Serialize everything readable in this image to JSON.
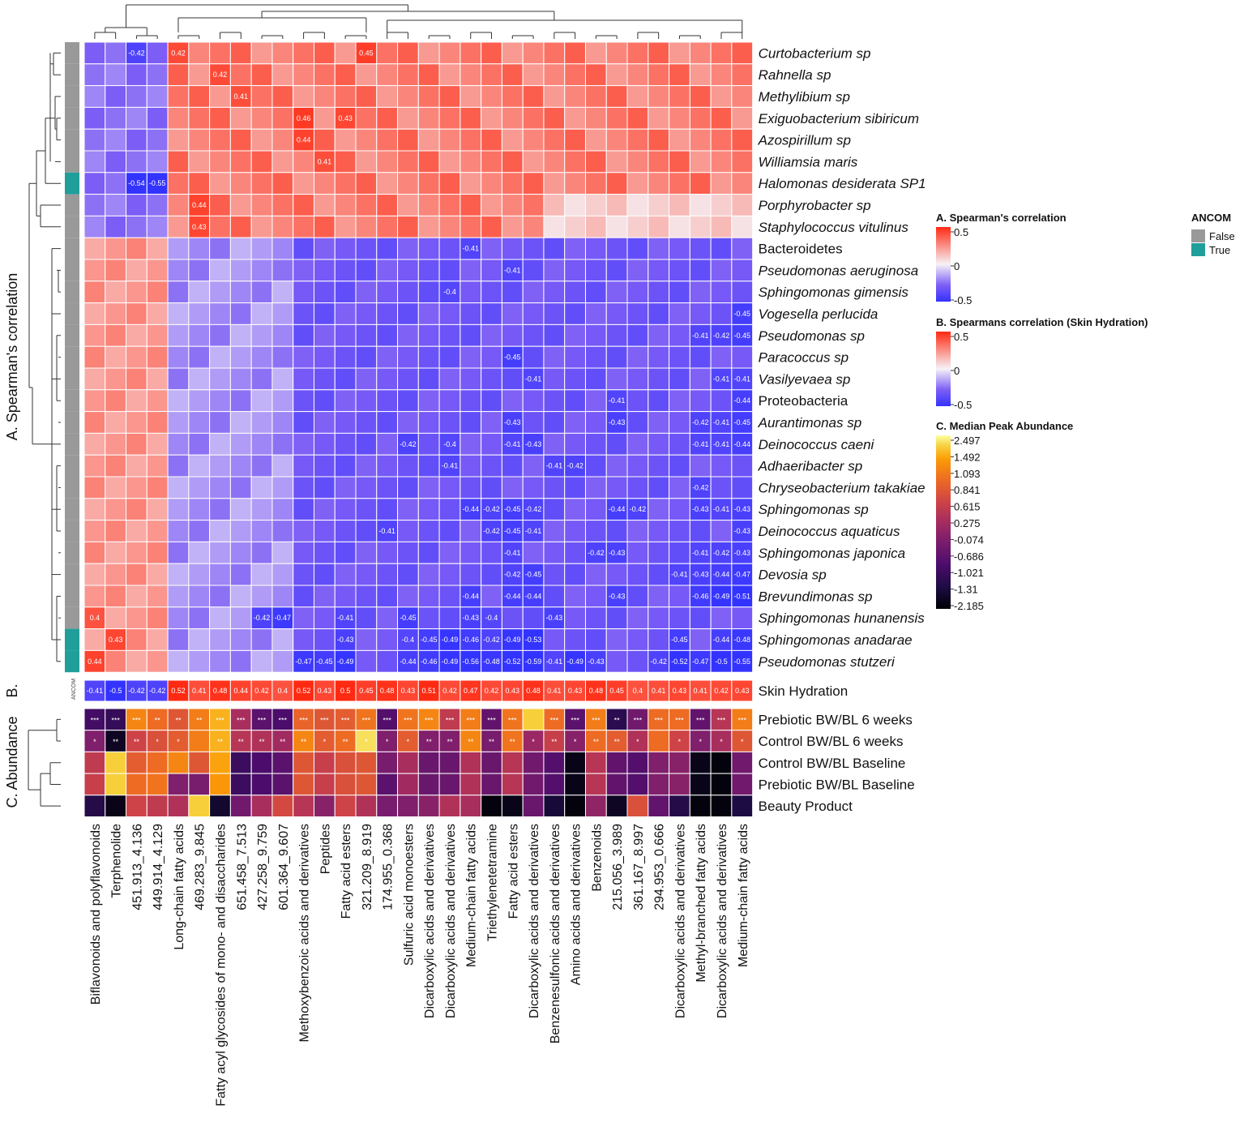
{
  "chart_data": {
    "type": "heatmap",
    "columns": [
      "Biflavonoids and polyflavonoids",
      "Terphenolide",
      "451.913_4.136",
      "449.914_4.129",
      "Long-chain fatty acids",
      "469.283_9.845",
      "Fatty acyl glycosides of mono- and disaccharides",
      "651.458_7.513",
      "427.258_9.759",
      "601.364_9.607",
      "Methoxybenzoic acids and derivatives",
      "Peptides",
      "Fatty acid esters",
      "321.209_8.919",
      "174.955_0.368",
      "Sulfuric acid monoesters",
      "Dicarboxylic acids and derivatives",
      "Dicarboxylic acids and derivatives",
      "Medium-chain fatty acids",
      "Triethylenetetramine",
      "Fatty acid esters",
      "Dicarboxylic acids and derivatives",
      "Benzenesulfonic acids and derivatives",
      "Amino acids and derivatives",
      "Benzenoids",
      "215.056_3.989",
      "361.167_8.997",
      "294.953_0.666",
      "Dicarboxylic acids and derivatives",
      "Methyl-branched fatty acids",
      "Dicarboxylic acids and derivatives",
      "Medium-chain fatty acids"
    ],
    "panel_a": {
      "side_label": "A. Spearman's correlation",
      "ancom_label": "ANCOM",
      "rows": [
        {
          "name": "Curtobacterium sp",
          "italic": true,
          "ancom": "False",
          "labels": {
            "2": "-0.42",
            "4": "0.42",
            "13": "0.45"
          }
        },
        {
          "name": "Rahnella sp",
          "italic": true,
          "ancom": "False",
          "labels": {
            "6": "0.42"
          }
        },
        {
          "name": "Methylibium sp",
          "italic": true,
          "ancom": "False",
          "labels": {
            "7": "0.41"
          }
        },
        {
          "name": "Exiguobacterium sibiricum",
          "italic": true,
          "ancom": "False",
          "labels": {
            "10": "0.46",
            "12": "0.43"
          }
        },
        {
          "name": "Azospirillum sp",
          "italic": true,
          "ancom": "False",
          "labels": {
            "10": "0.44"
          }
        },
        {
          "name": "Williamsia maris",
          "italic": true,
          "ancom": "False",
          "labels": {
            "11": "0.41"
          }
        },
        {
          "name": "Halomonas desiderata SP1",
          "italic": true,
          "ancom": "True",
          "labels": {
            "2": "-0.54",
            "3": "-0.55"
          }
        },
        {
          "name": "Porphyrobacter sp",
          "italic": true,
          "ancom": "False",
          "labels": {
            "5": "0.44"
          }
        },
        {
          "name": "Staphylococcus vitulinus",
          "italic": true,
          "ancom": "False",
          "labels": {
            "5": "0.43"
          }
        },
        {
          "name": "Bacteroidetes",
          "italic": false,
          "ancom": "False",
          "labels": {
            "18": "-0.41"
          }
        },
        {
          "name": "Pseudomonas aeruginosa",
          "italic": true,
          "ancom": "False",
          "labels": {
            "20": "-0.41"
          }
        },
        {
          "name": "Sphingomonas gimensis",
          "italic": true,
          "ancom": "False",
          "labels": {
            "17": "-0.4"
          }
        },
        {
          "name": "Vogesella perlucida",
          "italic": true,
          "ancom": "False",
          "labels": {
            "31": "-0.45"
          }
        },
        {
          "name": "Pseudomonas sp",
          "italic": true,
          "ancom": "False",
          "labels": {
            "29": "-0.41",
            "30": "-0.42",
            "31": "-0.45"
          }
        },
        {
          "name": "Paracoccus sp",
          "italic": true,
          "ancom": "False",
          "labels": {
            "20": "-0.45"
          }
        },
        {
          "name": "Vasilyevaea sp",
          "italic": true,
          "ancom": "False",
          "labels": {
            "21": "-0.41",
            "30": "-0.41",
            "31": "-0.41"
          }
        },
        {
          "name": "Proteobacteria",
          "italic": false,
          "ancom": "False",
          "labels": {
            "25": "-0.41",
            "31": "-0.44"
          }
        },
        {
          "name": "Aurantimonas sp",
          "italic": true,
          "ancom": "False",
          "labels": {
            "20": "-0.43",
            "25": "-0.43",
            "29": "-0.42",
            "30": "-0.41",
            "31": "-0.45"
          }
        },
        {
          "name": "Deinococcus caeni",
          "italic": true,
          "ancom": "False",
          "labels": {
            "15": "-0.42",
            "17": "-0.4",
            "20": "-0.41",
            "21": "-0.43",
            "29": "-0.41",
            "30": "-0.41",
            "31": "-0.44"
          }
        },
        {
          "name": "Adhaeribacter sp",
          "italic": true,
          "ancom": "False",
          "labels": {
            "17": "-0.41",
            "22": "-0.41",
            "23": "-0.42"
          }
        },
        {
          "name": "Chryseobacterium takakiae",
          "italic": true,
          "ancom": "False",
          "labels": {
            "29": "-0.42"
          }
        },
        {
          "name": "Sphingomonas sp",
          "italic": true,
          "ancom": "False",
          "labels": {
            "18": "-0.44",
            "19": "-0.42",
            "20": "-0.45",
            "21": "-0.42",
            "25": "-0.44",
            "26": "-0.42",
            "29": "-0.43",
            "30": "-0.41",
            "31": "-0.43"
          }
        },
        {
          "name": "Deinococcus aquaticus",
          "italic": true,
          "ancom": "False",
          "labels": {
            "14": "-0.41",
            "19": "-0.42",
            "20": "-0.45",
            "21": "-0.41",
            "31": "-0.43"
          }
        },
        {
          "name": "Sphingomonas japonica",
          "italic": true,
          "ancom": "False",
          "labels": {
            "20": "-0.41",
            "24": "-0.42",
            "25": "-0.43",
            "29": "-0.41",
            "30": "-0.42",
            "31": "-0.43"
          }
        },
        {
          "name": "Devosia sp",
          "italic": true,
          "ancom": "False",
          "labels": {
            "20": "-0.42",
            "21": "-0.45",
            "28": "-0.41",
            "29": "-0.43",
            "30": "-0.44",
            "31": "-0.47"
          }
        },
        {
          "name": "Brevundimonas sp",
          "italic": true,
          "ancom": "False",
          "labels": {
            "18": "-0.44",
            "20": "-0.44",
            "21": "-0.44",
            "25": "-0.43",
            "29": "-0.46",
            "30": "-0.49",
            "31": "-0.51"
          }
        },
        {
          "name": "Sphingomonas hunanensis",
          "italic": true,
          "ancom": "False",
          "labels": {
            "0": "0.4",
            "8": "-0.42",
            "9": "-0.47",
            "12": "-0.41",
            "15": "-0.45",
            "18": "-0.43",
            "19": "-0.4",
            "22": "-0.43"
          }
        },
        {
          "name": "Sphingomonas anadarae",
          "italic": true,
          "ancom": "True",
          "labels": {
            "1": "0.43",
            "12": "-0.43",
            "15": "-0.4",
            "16": "-0.45",
            "17": "-0.49",
            "18": "-0.46",
            "19": "-0.42",
            "20": "-0.49",
            "21": "-0.53",
            "28": "-0.45",
            "30": "-0.44",
            "31": "-0.48"
          }
        },
        {
          "name": "Pseudomonas stutzeri",
          "italic": true,
          "ancom": "True",
          "labels": {
            "0": "0.44",
            "10": "-0.47",
            "11": "-0.45",
            "12": "-0.49",
            "15": "-0.44",
            "16": "-0.46",
            "17": "-0.49",
            "18": "-0.56",
            "19": "-0.48",
            "20": "-0.52",
            "21": "-0.59",
            "22": "-0.41",
            "23": "-0.49",
            "24": "-0.43",
            "27": "-0.42",
            "28": "-0.52",
            "29": "-0.47",
            "30": "-0.5",
            "31": "-0.55"
          }
        }
      ]
    },
    "panel_b": {
      "side_label": "B.",
      "row_name": "Skin Hydration",
      "ancom_label": "ANCOM",
      "values": [
        "-0.41",
        "-0.5",
        "-0.42",
        "-0.42",
        "0.52",
        "0.41",
        "0.48",
        "0.44",
        "0.42",
        "0.4",
        "0.52",
        "0.43",
        "0.5",
        "0.45",
        "0.48",
        "0.43",
        "0.51",
        "0.42",
        "0.47",
        "0.42",
        "0.43",
        "0.48",
        "0.41",
        "0.43",
        "0.48",
        "0.45",
        "0.4",
        "0.41",
        "0.43",
        "0.41",
        "0.42",
        "0.43"
      ]
    },
    "panel_c": {
      "side_label": "C. Abundance",
      "rows": [
        {
          "name": "Prebiotic BW/BL 6 weeks",
          "values": [
            -1.1,
            -1.3,
            1.6,
            1.3,
            1.0,
            1.5,
            2.0,
            0.2,
            -0.8,
            -1.0,
            1.2,
            1.0,
            1.1,
            1.4,
            -0.9,
            1.4,
            1.6,
            0.5,
            1.5,
            -0.7,
            1.4,
            2.2,
            1.3,
            -0.8,
            1.5,
            -1.4,
            -0.5,
            1.3,
            1.3,
            -0.7,
            0.4,
            1.5
          ],
          "stars": [
            "***",
            "***",
            "***",
            "**",
            "**",
            "**",
            "***",
            "***",
            "***",
            "***",
            "***",
            "***",
            "***",
            "***",
            "***",
            "***",
            "***",
            "***",
            "***",
            "***",
            "***",
            "",
            "***",
            "***",
            "***",
            "**",
            "***",
            "***",
            "***",
            "***",
            "***",
            "***"
          ]
        },
        {
          "name": "Control BW/BL 6 weeks",
          "values": [
            -0.3,
            -1.9,
            0.7,
            0.9,
            1.1,
            1.5,
            2.0,
            0.4,
            0.3,
            0.1,
            1.6,
            1.1,
            1.3,
            2.3,
            -0.3,
            1.1,
            -0.3,
            -0.3,
            1.6,
            -0.4,
            1.4,
            0.0,
            0.6,
            -0.2,
            1.3,
            1.1,
            0.3,
            1.3,
            0.7,
            -0.3,
            0.2,
            1.0
          ],
          "stars": [
            "*",
            "**",
            "**",
            "*",
            "*",
            "",
            "**",
            "**",
            "**",
            "**",
            "**",
            "*",
            "**",
            "*",
            "*",
            "*",
            "**",
            "**",
            "**",
            "**",
            "**",
            "*",
            "**",
            "*",
            "**",
            "**",
            "*",
            "",
            "*",
            "*",
            "*",
            "*"
          ]
        },
        {
          "name": "Control BW/BL Baseline",
          "values": [
            0.5,
            2.2,
            1.1,
            1.3,
            1.6,
            1.0,
            1.9,
            -1.2,
            -1.0,
            -0.8,
            1.0,
            0.6,
            0.9,
            1.0,
            -0.4,
            0.2,
            -0.6,
            -0.6,
            0.3,
            -0.6,
            0.4,
            -0.5,
            -0.9,
            -2.0,
            0.4,
            -0.7,
            -0.9,
            -0.3,
            -0.2,
            -2.0,
            -2.1,
            -0.5
          ]
        },
        {
          "name": "Prebiotic BW/BL Baseline",
          "values": [
            0.6,
            2.2,
            1.3,
            1.4,
            -0.3,
            -0.4,
            1.8,
            -1.2,
            -1.0,
            -0.8,
            1.0,
            0.6,
            0.9,
            1.0,
            -0.8,
            0.1,
            -0.6,
            -0.6,
            0.3,
            -0.6,
            0.4,
            -0.5,
            -0.9,
            -2.0,
            0.4,
            -0.7,
            -0.9,
            -0.3,
            -0.2,
            -2.0,
            -2.1,
            -0.5
          ]
        },
        {
          "name": "Beauty Product",
          "values": [
            -1.5,
            -2.0,
            0.7,
            0.5,
            0.3,
            2.2,
            -1.8,
            -0.5,
            0.2,
            0.8,
            0.4,
            -0.2,
            0.7,
            0.3,
            -0.4,
            -0.3,
            -0.2,
            0.3,
            0.2,
            -2.1,
            -2.0,
            -0.6,
            -1.7,
            -2.1,
            -0.1,
            -1.9,
            0.9,
            -0.7,
            -1.5,
            -2.1,
            -2.1,
            -1.6
          ]
        }
      ]
    },
    "legends": {
      "a": {
        "title": "A. Spearman's correlation",
        "ticks": [
          "0.5",
          "0",
          "-0.5"
        ]
      },
      "b": {
        "title": "B. Spearmans correlation (Skin Hydration)",
        "ticks": [
          "0.5",
          "0",
          "-0.5"
        ]
      },
      "c": {
        "title": "C. Median Peak Abundance",
        "ticks": [
          "2.497",
          "1.492",
          "1.093",
          "0.841",
          "0.615",
          "0.275",
          "-0.074",
          "-0.686",
          "-1.021",
          "-1.31",
          "-2.185"
        ]
      },
      "ancom": {
        "title": "ANCOM",
        "items": [
          {
            "label": "False",
            "color": "#999999"
          },
          {
            "label": "True",
            "color": "#1f9e9a"
          }
        ]
      }
    },
    "colors": {
      "neg": "#3333ff",
      "neg_mid": "#7e5ef5",
      "mid": "#f5f2f7",
      "pos": "#ff2a12",
      "ancom_false": "#999999",
      "ancom_true": "#1f9e9a"
    }
  }
}
